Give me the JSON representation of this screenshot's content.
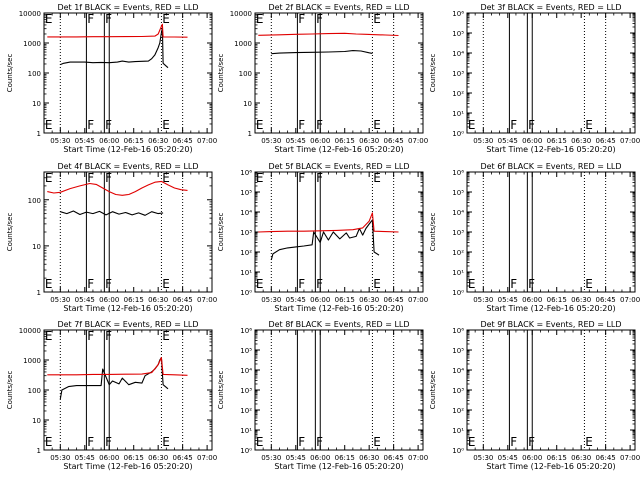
{
  "x_tick_labels": [
    "05:30",
    "05:45",
    "06:00",
    "06:15",
    "06:30",
    "06:45",
    "07:00"
  ],
  "x_tick_minutes": [
    330,
    345,
    360,
    375,
    390,
    405,
    420
  ],
  "x_range_minutes": [
    320,
    423
  ],
  "dotted_lines_minutes": [
    330,
    392,
    405
  ],
  "xlabel": "Start Time (12-Feb-16 05:20:20)",
  "ylabel": "Counts/sec",
  "colors": {
    "events": "#000000",
    "lld": "#e00000",
    "axes": "#000000"
  },
  "chart_data": [
    {
      "type": "line",
      "title": "Det 1f BLACK = Events, RED = LLD",
      "ylim": [
        1,
        10000
      ],
      "log_y": true,
      "y_tick_labels": [
        "1",
        "10",
        "100",
        "1000",
        "10000"
      ],
      "y_tick_values": [
        1,
        10,
        100,
        1000,
        10000
      ],
      "event_lines_minutes": [
        346,
        357,
        360
      ],
      "markers": [
        {
          "text": "E",
          "x_min": 320.5
        },
        {
          "text": "F",
          "x_min": 346.5
        },
        {
          "text": "F",
          "x_min": 357.5
        },
        {
          "text": "E",
          "x_min": 392.5
        }
      ],
      "series": [
        {
          "key": "events",
          "x": [
            330,
            332,
            336,
            340,
            345,
            350,
            355,
            360,
            365,
            368,
            372,
            376,
            380,
            384,
            386,
            388,
            390,
            391,
            392,
            392.6,
            393,
            396
          ],
          "y": [
            190,
            210,
            230,
            230,
            230,
            220,
            225,
            220,
            230,
            250,
            230,
            240,
            245,
            250,
            300,
            400,
            700,
            1000,
            2200,
            3200,
            210,
            150
          ]
        },
        {
          "key": "lld",
          "x": [
            322,
            330,
            340,
            350,
            360,
            370,
            380,
            388,
            390,
            392,
            392.6,
            393,
            400,
            408
          ],
          "y": [
            1600,
            1600,
            1600,
            1620,
            1620,
            1630,
            1650,
            1700,
            2000,
            3600,
            4200,
            1600,
            1580,
            1560
          ]
        }
      ]
    },
    {
      "type": "line",
      "title": "Det 2f BLACK = Events, RED = LLD",
      "ylim": [
        1,
        10000
      ],
      "log_y": true,
      "y_tick_labels": [
        "1",
        "10",
        "100",
        "1000",
        "10000"
      ],
      "y_tick_values": [
        1,
        10,
        100,
        1000,
        10000
      ],
      "event_lines_minutes": [
        346,
        357,
        360
      ],
      "markers": [
        {
          "text": "E",
          "x_min": 320.5
        },
        {
          "text": "F",
          "x_min": 346.5
        },
        {
          "text": "F",
          "x_min": 357.5
        },
        {
          "text": "E",
          "x_min": 392.5
        }
      ],
      "series": [
        {
          "key": "events",
          "x": [
            330,
            335,
            345,
            355,
            365,
            375,
            380,
            385,
            390,
            392
          ],
          "y": [
            440,
            460,
            480,
            490,
            500,
            520,
            560,
            540,
            470,
            450
          ]
        },
        {
          "key": "lld",
          "x": [
            322,
            335,
            345,
            355,
            365,
            375,
            382,
            388,
            392,
            400,
            408
          ],
          "y": [
            1800,
            1880,
            1950,
            2000,
            2050,
            2100,
            2000,
            1950,
            1900,
            1850,
            1780
          ]
        }
      ]
    },
    {
      "type": "line",
      "title": "Det 3f BLACK = Events, RED = LLD",
      "ylim": [
        1,
        1000000
      ],
      "log_y": true,
      "y_tick_labels": [
        "10⁰",
        "10¹",
        "10²",
        "10³",
        "10⁴",
        "10⁵",
        "10⁶"
      ],
      "y_tick_values": [
        1,
        10,
        100,
        1000,
        10000,
        100000,
        1000000
      ],
      "event_lines_minutes": [
        346,
        357,
        360
      ],
      "markers": [
        {
          "text": "E",
          "x_min": 320.5
        },
        {
          "text": "F",
          "x_min": 346.5
        },
        {
          "text": "F",
          "x_min": 357.5
        },
        {
          "text": "E",
          "x_min": 392.5
        }
      ],
      "series": []
    },
    {
      "type": "line",
      "title": "Det 4f BLACK = Events, RED = LLD",
      "ylim": [
        1,
        400
      ],
      "log_y": true,
      "y_tick_labels": [
        "1",
        "10",
        "100"
      ],
      "y_tick_values": [
        1,
        10,
        100
      ],
      "event_lines_minutes": [
        346,
        357,
        360
      ],
      "markers": [
        {
          "text": "E",
          "x_min": 320.5
        },
        {
          "text": "F",
          "x_min": 346.5
        },
        {
          "text": "F",
          "x_min": 357.5
        },
        {
          "text": "E",
          "x_min": 392.5
        }
      ],
      "series": [
        {
          "key": "events",
          "x": [
            330,
            334,
            338,
            342,
            346,
            350,
            354,
            358,
            362,
            366,
            370,
            374,
            378,
            382,
            386,
            390,
            393
          ],
          "y": [
            55,
            50,
            57,
            48,
            54,
            50,
            56,
            47,
            55,
            49,
            53,
            47,
            52,
            46,
            55,
            50,
            52
          ]
        },
        {
          "key": "lld",
          "x": [
            322,
            326,
            330,
            336,
            342,
            348,
            352,
            356,
            360,
            364,
            368,
            372,
            376,
            380,
            384,
            388,
            392,
            396,
            400,
            404,
            408
          ],
          "y": [
            150,
            140,
            145,
            175,
            200,
            225,
            215,
            180,
            150,
            130,
            125,
            130,
            150,
            180,
            210,
            240,
            250,
            210,
            180,
            165,
            160
          ]
        }
      ]
    },
    {
      "type": "line",
      "title": "Det 5f BLACK = Events, RED = LLD",
      "ylim": [
        1,
        1000000
      ],
      "log_y": true,
      "y_tick_labels": [
        "10⁰",
        "10¹",
        "10²",
        "10³",
        "10⁴",
        "10⁵",
        "10⁶"
      ],
      "y_tick_values": [
        1,
        10,
        100,
        1000,
        10000,
        100000,
        1000000
      ],
      "event_lines_minutes": [
        346,
        357,
        360
      ],
      "markers": [
        {
          "text": "E",
          "x_min": 320.5
        },
        {
          "text": "F",
          "x_min": 346.5
        },
        {
          "text": "F",
          "x_min": 357.5
        },
        {
          "text": "E",
          "x_min": 392.5
        }
      ],
      "series": [
        {
          "key": "events",
          "x": [
            330,
            331,
            335,
            340,
            345,
            350,
            355,
            356,
            360,
            362,
            365,
            368,
            372,
            376,
            378,
            382,
            384,
            386,
            388,
            390,
            392,
            393,
            396
          ],
          "y": [
            40,
            80,
            130,
            160,
            180,
            200,
            230,
            1000,
            300,
            1000,
            400,
            1000,
            450,
            900,
            500,
            600,
            1500,
            700,
            1500,
            2500,
            4000,
            100,
            70
          ]
        },
        {
          "key": "lld",
          "x": [
            322,
            330,
            340,
            350,
            360,
            370,
            380,
            386,
            390,
            392,
            393,
            400,
            408
          ],
          "y": [
            1000,
            1050,
            1100,
            1100,
            1150,
            1200,
            1300,
            1600,
            3500,
            9000,
            1100,
            1050,
            1000
          ]
        }
      ]
    },
    {
      "type": "line",
      "title": "Det 6f BLACK = Events, RED = LLD",
      "ylim": [
        1,
        1000000
      ],
      "log_y": true,
      "y_tick_labels": [
        "10⁰",
        "10¹",
        "10²",
        "10³",
        "10⁴",
        "10⁵",
        "10⁶"
      ],
      "y_tick_values": [
        1,
        10,
        100,
        1000,
        10000,
        100000,
        1000000
      ],
      "event_lines_minutes": [
        346,
        357,
        360
      ],
      "markers": [
        {
          "text": "E",
          "x_min": 320.5
        },
        {
          "text": "F",
          "x_min": 346.5
        },
        {
          "text": "F",
          "x_min": 357.5
        },
        {
          "text": "E",
          "x_min": 392.5
        }
      ],
      "series": []
    },
    {
      "type": "line",
      "title": "Det 7f BLACK = Events, RED = LLD",
      "ylim": [
        1,
        10000
      ],
      "log_y": true,
      "y_tick_labels": [
        "1",
        "10",
        "100",
        "1000",
        "10000"
      ],
      "y_tick_values": [
        1,
        10,
        100,
        1000,
        10000
      ],
      "event_lines_minutes": [
        346,
        357,
        360
      ],
      "markers": [
        {
          "text": "E",
          "x_min": 320.5
        },
        {
          "text": "F",
          "x_min": 346.5
        },
        {
          "text": "F",
          "x_min": 357.5
        },
        {
          "text": "E",
          "x_min": 392.5
        }
      ],
      "series": [
        {
          "key": "events",
          "x": [
            330,
            331,
            335,
            340,
            345,
            350,
            355,
            356,
            360,
            362,
            366,
            368,
            372,
            376,
            380,
            382,
            386,
            388,
            390,
            391,
            392,
            393,
            396
          ],
          "y": [
            50,
            100,
            130,
            140,
            140,
            140,
            140,
            500,
            150,
            200,
            160,
            250,
            150,
            180,
            170,
            300,
            400,
            500,
            700,
            1000,
            1200,
            150,
            110
          ]
        },
        {
          "key": "lld",
          "x": [
            322,
            330,
            340,
            350,
            360,
            370,
            380,
            386,
            390,
            392,
            393,
            400,
            408
          ],
          "y": [
            320,
            320,
            320,
            330,
            330,
            335,
            340,
            380,
            700,
            1200,
            330,
            320,
            310
          ]
        }
      ]
    },
    {
      "type": "line",
      "title": "Det 8f BLACK = Events, RED = LLD",
      "ylim": [
        1,
        1000000
      ],
      "log_y": true,
      "y_tick_labels": [
        "10⁰",
        "10¹",
        "10²",
        "10³",
        "10⁴",
        "10⁵",
        "10⁶"
      ],
      "y_tick_values": [
        1,
        10,
        100,
        1000,
        10000,
        100000,
        1000000
      ],
      "event_lines_minutes": [
        346,
        357,
        360
      ],
      "markers": [
        {
          "text": "E",
          "x_min": 320.5
        },
        {
          "text": "F",
          "x_min": 346.5
        },
        {
          "text": "F",
          "x_min": 357.5
        },
        {
          "text": "E",
          "x_min": 392.5
        }
      ],
      "series": []
    },
    {
      "type": "line",
      "title": "Det 9f BLACK = Events, RED = LLD",
      "ylim": [
        1,
        1000000
      ],
      "log_y": true,
      "y_tick_labels": [
        "10⁰",
        "10¹",
        "10²",
        "10³",
        "10⁴",
        "10⁵",
        "10⁶"
      ],
      "y_tick_values": [
        1,
        10,
        100,
        1000,
        10000,
        100000,
        1000000
      ],
      "event_lines_minutes": [
        346,
        357,
        360
      ],
      "markers": [
        {
          "text": "E",
          "x_min": 320.5
        },
        {
          "text": "F",
          "x_min": 346.5
        },
        {
          "text": "F",
          "x_min": 357.5
        },
        {
          "text": "E",
          "x_min": 392.5
        }
      ],
      "series": []
    }
  ]
}
